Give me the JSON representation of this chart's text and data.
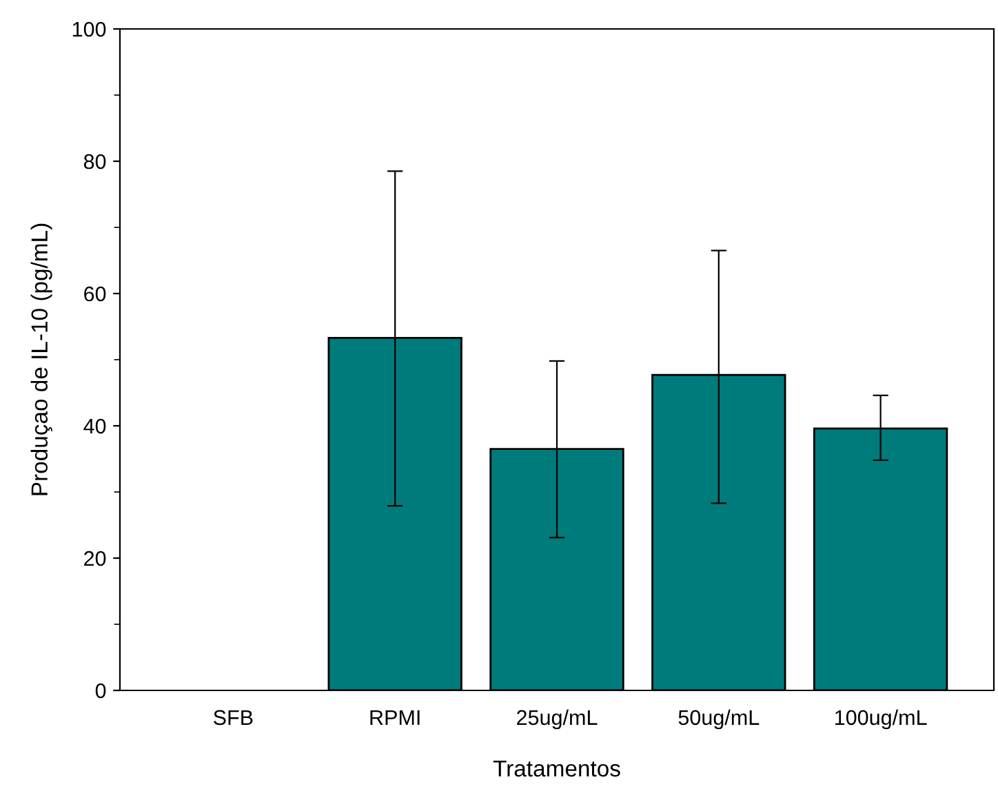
{
  "chart_data": {
    "type": "bar",
    "xlabel": "Tratamentos",
    "ylabel": "Produçao de IL-10 (pg/mL)",
    "categories": [
      "SFB",
      "RPMI",
      "25ug/mL",
      "50ug/mL",
      "100ug/mL"
    ],
    "values": [
      null,
      53.3,
      36.5,
      47.7,
      39.6
    ],
    "errors": [
      null,
      [
        27.9,
        78.5
      ],
      [
        23.1,
        49.8
      ],
      [
        28.3,
        66.5
      ],
      [
        34.8,
        44.6
      ]
    ],
    "color": "#007b7b",
    "ylim": [
      0,
      100
    ],
    "yticks": [
      0,
      20,
      40,
      60,
      80,
      100
    ],
    "grid": false
  }
}
